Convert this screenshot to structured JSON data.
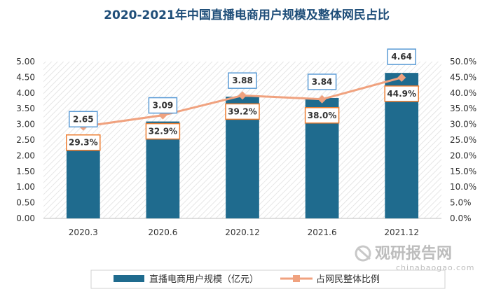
{
  "chart_data": {
    "type": "bar",
    "title": "2020-2021年中国直播电商用户规模及整体网民占比",
    "categories": [
      "2020.3",
      "2020.6",
      "2020.12",
      "2021.6",
      "2021.12"
    ],
    "series": [
      {
        "name": "直播电商用户规模（亿元）",
        "type": "bar",
        "axis": "left",
        "color": "#1f6b8e",
        "values": [
          2.65,
          3.09,
          3.88,
          3.84,
          4.64
        ],
        "labels": [
          "2.65",
          "3.09",
          "3.88",
          "3.84",
          "4.64"
        ]
      },
      {
        "name": "占网民整体比例",
        "type": "line",
        "axis": "right",
        "color": "#f0a27f",
        "values": [
          29.3,
          32.9,
          39.2,
          38.0,
          44.9
        ],
        "labels": [
          "29.3%",
          "32.9%",
          "39.2%",
          "38.0%",
          "44.9%"
        ]
      }
    ],
    "y_left": {
      "ylim": [
        0,
        5
      ],
      "ticks": [
        "0.00",
        "0.50",
        "1.00",
        "1.50",
        "2.00",
        "2.50",
        "3.00",
        "3.50",
        "4.00",
        "4.50",
        "5.00"
      ]
    },
    "y_right": {
      "ylim": [
        0,
        50
      ],
      "ticks": [
        "0.0%",
        "5.0%",
        "10.0%",
        "15.0%",
        "20.0%",
        "25.0%",
        "30.0%",
        "35.0%",
        "40.0%",
        "45.0%",
        "50.0%"
      ]
    },
    "grid": false,
    "legend": "bottom"
  },
  "watermark": {
    "main": "观研报告网",
    "sub": "chinabaogao.com"
  }
}
